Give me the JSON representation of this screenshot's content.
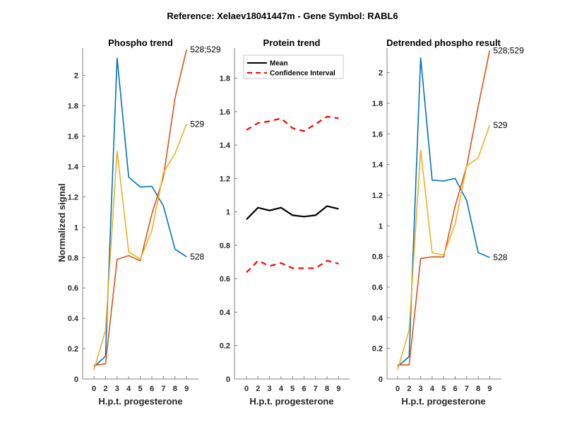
{
  "figure": {
    "suptitle": "Reference:  Xelaev18041447m - Gene Symbol:  RABL6"
  },
  "colors": {
    "series_528": "#0072BD",
    "series_528_529": "#D95319",
    "series_529": "#EDB120",
    "mean": "#000000",
    "ci": "#FF0000",
    "axis": "#808080",
    "tick_text": "#262626"
  },
  "chart_data": [
    {
      "type": "line",
      "title": "Phospho trend",
      "xlabel": "H.p.t. progesterone",
      "ylabel": "Normalized signal",
      "categories": [
        "0",
        "2",
        "3",
        "4",
        "5",
        "6",
        "7",
        "8",
        "9"
      ],
      "yticks": [
        "0",
        "0.2",
        "0.4",
        "0.6",
        "0.8",
        "1",
        "1.2",
        "1.4",
        "1.6",
        "1.8",
        "2"
      ],
      "ylim": [
        0,
        2.18
      ],
      "grid": false,
      "series": [
        {
          "name": "528",
          "color_key": "series_528",
          "values": [
            0.08,
            0.15,
            2.115,
            1.33,
            1.265,
            1.27,
            1.14,
            0.855,
            0.805
          ]
        },
        {
          "name": "528;529",
          "color_key": "series_528_529",
          "values": [
            0.09,
            0.1,
            0.788,
            0.813,
            0.779,
            1.087,
            1.33,
            1.85,
            2.17
          ]
        },
        {
          "name": "529",
          "color_key": "series_529",
          "values": [
            0.06,
            0.32,
            1.503,
            0.838,
            0.79,
            0.978,
            1.36,
            1.485,
            1.68
          ]
        }
      ]
    },
    {
      "type": "line",
      "title": "Protein trend",
      "xlabel": "H.p.t. progesterone",
      "ylabel": "",
      "categories": [
        "0",
        "2",
        "3",
        "4",
        "5",
        "6",
        "7",
        "8",
        "9"
      ],
      "yticks": [
        "0",
        "0.2",
        "0.4",
        "0.6",
        "0.8",
        "1",
        "1.2",
        "1.4",
        "1.6",
        "1.8"
      ],
      "ylim": [
        0,
        1.98
      ],
      "grid": false,
      "legend": {
        "placement": "top-left",
        "entries": [
          "Mean",
          "Confidence Interval"
        ]
      },
      "series": [
        {
          "name": "Mean",
          "color_key": "mean",
          "style": "solid",
          "values": [
            0.955,
            1.025,
            1.008,
            1.025,
            0.98,
            0.972,
            0.98,
            1.035,
            1.018
          ]
        },
        {
          "name": "Confidence Interval (upper)",
          "color_key": "ci",
          "style": "dashed",
          "values": [
            1.49,
            1.532,
            1.542,
            1.56,
            1.501,
            1.483,
            1.525,
            1.57,
            1.56
          ]
        },
        {
          "name": "Confidence Interval (lower)",
          "color_key": "ci",
          "style": "dashed",
          "values": [
            0.638,
            0.708,
            0.676,
            0.694,
            0.663,
            0.663,
            0.663,
            0.708,
            0.69
          ]
        }
      ]
    },
    {
      "type": "line",
      "title": "Detrended phospho result",
      "xlabel": "H.p.t. progesterone",
      "ylabel": "",
      "categories": [
        "0",
        "2",
        "3",
        "4",
        "5",
        "6",
        "7",
        "8",
        "9"
      ],
      "yticks": [
        "0",
        "0.2",
        "0.4",
        "0.6",
        "0.8",
        "1",
        "1.2",
        "1.4",
        "1.6",
        "1.8",
        "2"
      ],
      "ylim": [
        0,
        2.16
      ],
      "grid": false,
      "series": [
        {
          "name": "528",
          "color_key": "series_528",
          "values": [
            0.082,
            0.146,
            2.098,
            1.298,
            1.293,
            1.309,
            1.164,
            0.825,
            0.793
          ]
        },
        {
          "name": "528;529",
          "color_key": "series_528_529",
          "values": [
            0.092,
            0.092,
            0.787,
            0.797,
            0.797,
            1.128,
            1.39,
            1.78,
            2.145
          ]
        },
        {
          "name": "529",
          "color_key": "series_529",
          "values": [
            0.059,
            0.32,
            1.495,
            0.825,
            0.81,
            1.013,
            1.39,
            1.444,
            1.657
          ]
        }
      ]
    }
  ]
}
